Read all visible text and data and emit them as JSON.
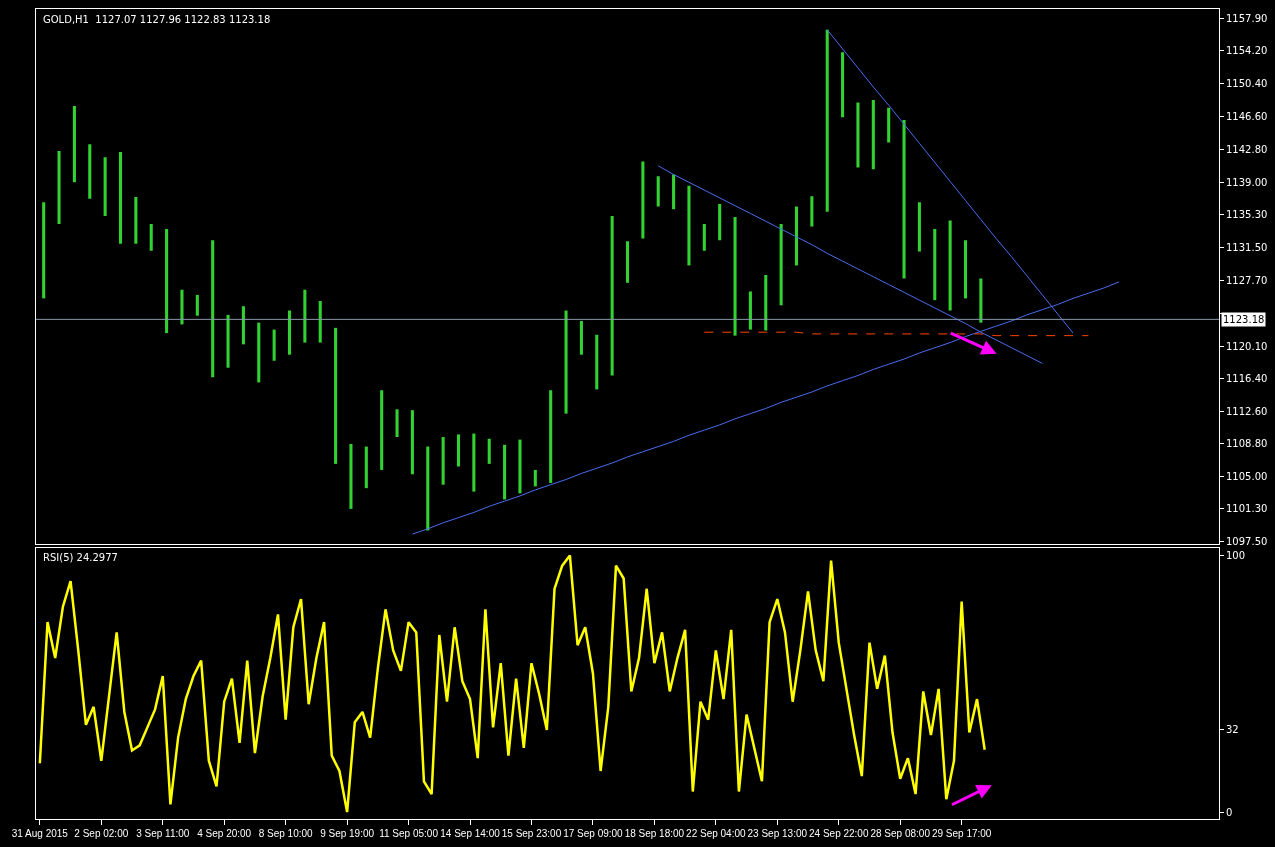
{
  "chart_data": [
    {
      "type": "bar",
      "title": "GOLD,H1  1127.07 1127.96 1122.83 1123.18",
      "categories": [
        null,
        null,
        null,
        null,
        null,
        null,
        null,
        null,
        null,
        null,
        null,
        null,
        null,
        null,
        null,
        null,
        null,
        null,
        null,
        null,
        null,
        null,
        null,
        null,
        null,
        null,
        null,
        null,
        null,
        null,
        null,
        null,
        null,
        null,
        null,
        null,
        null,
        null,
        null,
        null,
        null,
        null,
        null,
        null,
        null,
        null,
        null,
        null,
        null,
        null,
        null,
        null,
        null,
        null,
        null,
        null,
        null,
        null,
        null,
        null,
        null,
        null,
        null,
        null,
        null,
        null,
        null,
        null,
        null,
        null,
        null,
        null,
        null,
        null,
        null,
        null,
        null
      ],
      "ylim": [
        1097.3,
        1159.0
      ],
      "yticks": [
        {
          "value": 1157.9,
          "label": "1157.90"
        },
        {
          "value": 1154.2,
          "label": "1154.20"
        },
        {
          "value": 1150.4,
          "label": "1150.40"
        },
        {
          "value": 1146.6,
          "label": "1146.60"
        },
        {
          "value": 1142.8,
          "label": "1142.80"
        },
        {
          "value": 1139.0,
          "label": "1139.00"
        },
        {
          "value": 1135.3,
          "label": "1135.30"
        },
        {
          "value": 1131.5,
          "label": "1131.50"
        },
        {
          "value": 1127.7,
          "label": "1127.70"
        },
        {
          "value": 1123.9,
          "label": null
        },
        {
          "value": 1120.1,
          "label": "1120.10"
        },
        {
          "value": 1116.4,
          "label": "1116.40"
        },
        {
          "value": 1112.6,
          "label": "1112.60"
        },
        {
          "value": 1108.8,
          "label": "1108.80"
        },
        {
          "value": 1105.0,
          "label": "1105.00"
        },
        {
          "value": 1101.3,
          "label": "1101.30"
        },
        {
          "value": 1097.5,
          "label": "1097.50"
        }
      ],
      "tick_labels": "y",
      "ref_lines": [
        {
          "axis": "y",
          "value": 1123.18,
          "label": "1123.18",
          "color": "#8c9aa8"
        }
      ],
      "series": [
        {
          "type": "bar",
          "color": "#32d232",
          "base": [
            1125.6,
            1134.2,
            1139.0,
            1137.1,
            1135.1,
            1131.9,
            1131.9,
            1131.1,
            1121.6,
            1122.6,
            1123.6,
            1116.5,
            1117.6,
            1120.3,
            1115.9,
            1118.4,
            1119.1,
            1120.5,
            1120.5,
            1106.5,
            1101.3,
            1103.7,
            1105.8,
            1109.6,
            1105.3,
            1098.8,
            1104.1,
            1106.2,
            1103.3,
            1106.5,
            1102.4,
            1103.1,
            1103.9,
            1104.3,
            1112.3,
            1119.1,
            1115.1,
            1116.7,
            1127.4,
            1132.5,
            1136.2,
            1135.9,
            1129.4,
            1131.1,
            1132.3,
            1121.3,
            1122.0,
            1121.9,
            1124.8,
            1129.4,
            1133.9,
            1135.6,
            1146.5,
            1140.7,
            1140.5,
            1143.6,
            1127.9,
            1131.0,
            1125.4,
            1124.2,
            1125.6,
            1122.8,
            null,
            null,
            null,
            null,
            null,
            null,
            null,
            null,
            null,
            null,
            null,
            null,
            null,
            null,
            null
          ],
          "values": [
            11.1,
            8.4,
            8.8,
            6.3,
            6.8,
            10.6,
            5.4,
            3.1,
            12.0,
            4.0,
            2.4,
            15.8,
            6.1,
            4.4,
            6.9,
            3.6,
            5.1,
            6.1,
            4.8,
            15.7,
            7.5,
            4.8,
            9.2,
            3.2,
            7.4,
            9.7,
            5.5,
            3.7,
            6.7,
            2.9,
            6.3,
            6.2,
            1.9,
            10.7,
            11.9,
            3.9,
            6.3,
            18.4,
            4.8,
            8.9,
            3.5,
            4.0,
            9.2,
            3.1,
            4.2,
            13.7,
            4.4,
            6.4,
            9.4,
            6.8,
            3.5,
            21.0,
            7.5,
            7.5,
            8.0,
            4.0,
            18.3,
            5.7,
            8.2,
            10.4,
            6.7,
            5.1,
            null,
            null,
            null,
            null,
            null,
            null,
            null,
            null,
            null,
            null,
            null,
            null,
            null,
            null,
            null
          ]
        },
        {
          "type": "line",
          "color": "#4a6cf0",
          "values": [
            null,
            null,
            null,
            null,
            null,
            null,
            null,
            null,
            null,
            null,
            null,
            null,
            null,
            null,
            null,
            null,
            null,
            null,
            null,
            null,
            null,
            null,
            null,
            null,
            1098.4,
            1099.0,
            1099.7,
            1100.3,
            1100.9,
            1101.6,
            1102.2,
            1102.8,
            1103.5,
            1104.1,
            1104.7,
            1105.4,
            1106.0,
            1106.6,
            1107.3,
            1107.9,
            1108.5,
            1109.1,
            1109.8,
            1110.4,
            1111.0,
            1111.7,
            1112.3,
            1112.9,
            1113.6,
            1114.2,
            1114.8,
            1115.5,
            1116.1,
            1116.7,
            1117.4,
            1118.0,
            1118.6,
            1119.3,
            1119.9,
            1120.5,
            1121.2,
            1121.8,
            1122.4,
            1123.0,
            1123.7,
            1124.3,
            1124.9,
            1125.6,
            1126.2,
            1126.8,
            1127.5,
            null,
            null,
            null,
            null,
            null,
            null
          ]
        },
        {
          "type": "line",
          "color": "#4a6cf0",
          "values": [
            null,
            null,
            null,
            null,
            null,
            null,
            null,
            null,
            null,
            null,
            null,
            null,
            null,
            null,
            null,
            null,
            null,
            null,
            null,
            null,
            null,
            null,
            null,
            null,
            null,
            null,
            null,
            null,
            null,
            null,
            null,
            null,
            null,
            null,
            null,
            null,
            null,
            null,
            null,
            null,
            1140.9,
            1139.9,
            1139.0,
            1138.1,
            1137.2,
            1136.3,
            1135.4,
            1134.5,
            1133.6,
            1132.7,
            1131.8,
            1130.8,
            1129.9,
            1129.0,
            1128.1,
            1127.2,
            1126.3,
            1125.4,
            1124.5,
            1123.6,
            1122.7,
            1121.7,
            1120.8,
            1119.9,
            1119.0,
            1118.1,
            null,
            null,
            null,
            null,
            null,
            null,
            null,
            null,
            null,
            null,
            null
          ]
        },
        {
          "type": "line",
          "color": "#4a6cf0",
          "values": [
            null,
            null,
            null,
            null,
            null,
            null,
            null,
            null,
            null,
            null,
            null,
            null,
            null,
            null,
            null,
            null,
            null,
            null,
            null,
            null,
            null,
            null,
            null,
            null,
            null,
            null,
            null,
            null,
            null,
            null,
            null,
            null,
            null,
            null,
            null,
            null,
            null,
            null,
            null,
            null,
            null,
            null,
            null,
            null,
            null,
            null,
            null,
            null,
            null,
            null,
            null,
            1156.6,
            1154.4,
            1152.2,
            1150.0,
            1147.9,
            1145.7,
            1143.5,
            1141.3,
            1139.1,
            1136.9,
            1134.7,
            1132.5,
            1130.4,
            1128.2,
            1126.0,
            1123.8,
            1121.6,
            null,
            null,
            null,
            null,
            null,
            null,
            null,
            null,
            null
          ]
        },
        {
          "type": "line",
          "color": "#ff4500",
          "line_style": "dashed",
          "values": [
            null,
            null,
            null,
            null,
            null,
            null,
            null,
            null,
            null,
            null,
            null,
            null,
            null,
            null,
            null,
            null,
            null,
            null,
            null,
            null,
            null,
            null,
            null,
            null,
            null,
            null,
            null,
            null,
            null,
            null,
            null,
            null,
            null,
            null,
            null,
            null,
            null,
            null,
            null,
            null,
            null,
            null,
            null,
            1121.7,
            1121.7,
            1121.7,
            1121.7,
            1121.7,
            1121.7,
            1121.7,
            1121.5,
            1121.5,
            1121.5,
            1121.5,
            1121.5,
            1121.5,
            1121.5,
            1121.5,
            1121.5,
            1121.5,
            1121.5,
            1121.5,
            1121.3,
            1121.3,
            1121.3,
            1121.3,
            1121.3,
            1121.3,
            1121.3,
            null,
            null,
            null,
            null,
            null,
            null,
            null,
            null
          ]
        }
      ]
    },
    {
      "type": "line",
      "title": "RSI(5) 24.2977",
      "color": "#ffff00",
      "categories": [
        "31 Aug 2015",
        null,
        null,
        null,
        null,
        null,
        null,
        null,
        "2 Sep 02:00",
        null,
        null,
        null,
        null,
        null,
        null,
        null,
        "3 Sep 11:00",
        null,
        null,
        null,
        null,
        null,
        null,
        null,
        "4 Sep 20:00",
        null,
        null,
        null,
        null,
        null,
        null,
        null,
        "8 Sep 10:00",
        null,
        null,
        null,
        null,
        null,
        null,
        null,
        "9 Sep 19:00",
        null,
        null,
        null,
        null,
        null,
        null,
        null,
        "11 Sep 05:00",
        null,
        null,
        null,
        null,
        null,
        null,
        null,
        "14 Sep 14:00",
        null,
        null,
        null,
        null,
        null,
        null,
        null,
        "15 Sep 23:00",
        null,
        null,
        null,
        null,
        null,
        null,
        null,
        "17 Sep 09:00",
        null,
        null,
        null,
        null,
        null,
        null,
        null,
        "18 Sep 18:00",
        null,
        null,
        null,
        null,
        null,
        null,
        null,
        "22 Sep 04:00",
        null,
        null,
        null,
        null,
        null,
        null,
        null,
        "23 Sep 13:00",
        null,
        null,
        null,
        null,
        null,
        null,
        null,
        "24 Sep 22:00",
        null,
        null,
        null,
        null,
        null,
        null,
        null,
        "28 Sep 08:00",
        null,
        null,
        null,
        null,
        null,
        null,
        null,
        "29 Sep 17:00",
        null,
        null,
        null,
        null,
        null,
        null,
        null,
        null,
        null,
        null,
        null,
        null,
        null,
        null,
        null,
        null,
        null,
        null,
        null,
        null,
        null,
        null,
        null,
        null,
        null,
        null,
        null,
        null,
        null,
        null,
        null,
        null,
        null
      ],
      "values": [
        19,
        74,
        60,
        80,
        90,
        63,
        34,
        41,
        20,
        45,
        70,
        39,
        24,
        26,
        33,
        40,
        53,
        3,
        29,
        44,
        53,
        59,
        20,
        10,
        43,
        52,
        27,
        59,
        23,
        45,
        60,
        77,
        36,
        72,
        83,
        42,
        60,
        74,
        22,
        16,
        0,
        35,
        39,
        29,
        56,
        79,
        63,
        55,
        74,
        70,
        12,
        7,
        69,
        43,
        72,
        51,
        44,
        21,
        79,
        33,
        58,
        22,
        52,
        25,
        58,
        46,
        32,
        87,
        96,
        100,
        65,
        72,
        54,
        16,
        41,
        96,
        91,
        47,
        60,
        87,
        58,
        70,
        47,
        60,
        71,
        8,
        43,
        36,
        63,
        44,
        71,
        8,
        38,
        25,
        12,
        74,
        83,
        70,
        43,
        63,
        86,
        63,
        51,
        98,
        66,
        48,
        30,
        14,
        66,
        48,
        61,
        31,
        13,
        21,
        7,
        47,
        30,
        48,
        5,
        20,
        82,
        31,
        44,
        24.3,
        null,
        null,
        null,
        null,
        null,
        null,
        null,
        null,
        null,
        null,
        null,
        null,
        null,
        null,
        null,
        null,
        null,
        null,
        null,
        null,
        null,
        null,
        null,
        null,
        null,
        null,
        null,
        null,
        null,
        null
      ],
      "ylim": [
        -2.7,
        102.7
      ],
      "yticks": [
        0,
        32,
        100
      ]
    }
  ]
}
